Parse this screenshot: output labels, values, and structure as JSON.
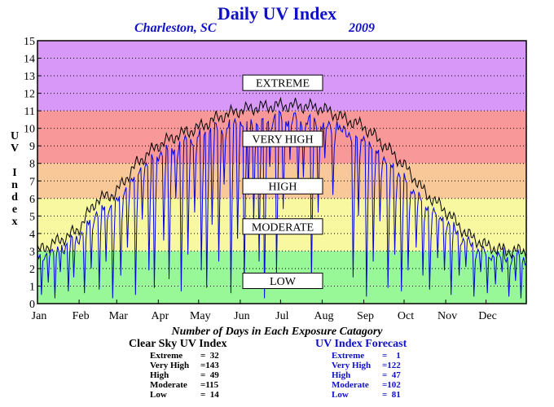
{
  "header": {
    "title": "Daily UV Index",
    "location": "Charleston, SC",
    "year": "2009"
  },
  "axis": {
    "ylabel_letters": [
      "U",
      "V",
      "",
      "I",
      "n",
      "d",
      "e",
      "x"
    ]
  },
  "chart_data": {
    "type": "line",
    "title": "Daily UV Index",
    "ylabel": "UV Index",
    "xlabel": "",
    "ylim": [
      0,
      15
    ],
    "xlim": [
      1,
      365
    ],
    "yticks": [
      0,
      1,
      2,
      3,
      4,
      5,
      6,
      7,
      8,
      9,
      10,
      11,
      12,
      13,
      14,
      15
    ],
    "grid": "horizontal dotted",
    "months": [
      "Jan",
      "Feb",
      "Mar",
      "Apr",
      "May",
      "Jun",
      "Jul",
      "Aug",
      "Sep",
      "Oct",
      "Nov",
      "Dec"
    ],
    "month_start_days": [
      1,
      32,
      60,
      91,
      121,
      152,
      182,
      213,
      244,
      274,
      305,
      335
    ],
    "bands": [
      {
        "label": "LOW",
        "from": 0,
        "to": 3,
        "color": "#98f898"
      },
      {
        "label": "MODERATE",
        "from": 3,
        "to": 6,
        "color": "#f8f8a0"
      },
      {
        "label": "HIGH",
        "from": 6,
        "to": 8,
        "color": "#f8c898"
      },
      {
        "label": "VERY HIGH",
        "from": 8,
        "to": 11,
        "color": "#f89898"
      },
      {
        "label": "EXTREME",
        "from": 11,
        "to": 15,
        "color": "#d898f8"
      }
    ],
    "band_label_values": {
      "LOW": 1.3,
      "MODERATE": 4.4,
      "HIGH": 6.7,
      "VERY HIGH": 9.4,
      "EXTREME": 12.6
    },
    "series": [
      {
        "color": "#000000",
        "keypoints_day": [
          1,
          20,
          31,
          45,
          59,
          75,
          90,
          105,
          120,
          135,
          150,
          165,
          180,
          195,
          210,
          220,
          228,
          244,
          260,
          275,
          290,
          305,
          320,
          335,
          350,
          365
        ],
        "keypoints_value": [
          3.0,
          3.7,
          4.2,
          5.9,
          6.3,
          8.0,
          9.0,
          9.6,
          10.0,
          10.6,
          11.0,
          11.2,
          11.3,
          11.3,
          11.2,
          10.9,
          10.6,
          10.1,
          9.0,
          7.8,
          6.3,
          5.3,
          4.0,
          3.3,
          3.0,
          3.0
        ]
      },
      {
        "color": "#0000e0",
        "keypoints_day": [
          1,
          20,
          31,
          45,
          59,
          75,
          90,
          105,
          120,
          135,
          150,
          165,
          180,
          195,
          210,
          220,
          228,
          244,
          260,
          275,
          290,
          305,
          320,
          335,
          350,
          365
        ],
        "keypoints_value": [
          2.6,
          3.2,
          3.7,
          5.2,
          5.7,
          7.4,
          8.5,
          9.0,
          9.5,
          10.0,
          10.3,
          10.5,
          10.6,
          10.5,
          10.3,
          10.0,
          9.8,
          9.4,
          8.2,
          7.0,
          5.6,
          4.7,
          3.5,
          2.8,
          2.6,
          2.6
        ],
        "dips_day": [
          4,
          9,
          14,
          18,
          24,
          28,
          36,
          41,
          47,
          52,
          57,
          63,
          68,
          74,
          79,
          84,
          88,
          95,
          99,
          104,
          108,
          113,
          118,
          123,
          127,
          131,
          136,
          140,
          145,
          150,
          155,
          158,
          162,
          166,
          170,
          174,
          179,
          184,
          189,
          195,
          199,
          205,
          210,
          215,
          221,
          223,
          236,
          240,
          246,
          251,
          256,
          262,
          267,
          272,
          277,
          283,
          288,
          293,
          299,
          304,
          309,
          315,
          320,
          326,
          331,
          336,
          342,
          347,
          352,
          357,
          361
        ],
        "dips_value": [
          0.5,
          1.2,
          0.3,
          1.8,
          0.7,
          1.5,
          0.6,
          2.0,
          0.8,
          2.4,
          0.3,
          1.6,
          3.2,
          0.5,
          4.8,
          1.9,
          0.9,
          3.6,
          1.4,
          6.0,
          0.7,
          2.8,
          5.2,
          1.9,
          0.9,
          4.5,
          2.4,
          6.8,
          0.6,
          3.7,
          1.1,
          6.2,
          4.7,
          2.4,
          0.3,
          7.8,
          1.7,
          5.4,
          8.2,
          6.4,
          7.2,
          1.3,
          5.2,
          8.3,
          6.2,
          9.7,
          1.5,
          5.0,
          0.4,
          2.4,
          4.7,
          0.9,
          2.8,
          0.7,
          1.9,
          3.2,
          1.6,
          0.8,
          2.6,
          1.9,
          0.5,
          1.6,
          2.1,
          0.4,
          1.8,
          0.6,
          1.1,
          1.8,
          0.4,
          1.3,
          0.3
        ]
      }
    ]
  },
  "summary": {
    "title": "Number of Days in Each Exposure Catagory",
    "clear_sky": {
      "heading": "Clear Sky UV Index",
      "rows": [
        {
          "name": "Extreme",
          "value": "=  32"
        },
        {
          "name": "Very High",
          "value": "=143"
        },
        {
          "name": "High",
          "value": "=  49"
        },
        {
          "name": "Moderate",
          "value": "=115"
        },
        {
          "name": "Low",
          "value": "=  14"
        }
      ]
    },
    "forecast": {
      "heading": "UV Index Forecast",
      "rows": [
        {
          "name": "Extreme",
          "value": "=    1"
        },
        {
          "name": "Very High",
          "value": "=122"
        },
        {
          "name": "High",
          "value": "=  47"
        },
        {
          "name": "Moderate",
          "value": "=102"
        },
        {
          "name": "Low",
          "value": "=  81"
        }
      ]
    }
  }
}
